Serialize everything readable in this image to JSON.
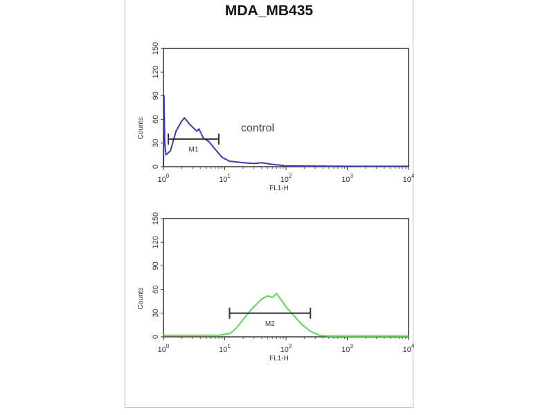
{
  "title": "MDA_MB435",
  "chart_data": [
    {
      "type": "line",
      "title": "MDA_MB435",
      "xlabel": "FL1-H",
      "ylabel": "Counts",
      "xscale": "log",
      "xlim": [
        1,
        10000
      ],
      "ylim": [
        0,
        150
      ],
      "xticks": [
        "10^0",
        "10^1",
        "10^2",
        "10^3",
        "10^4"
      ],
      "yticks": [
        0,
        30,
        60,
        90,
        120,
        150
      ],
      "grid": false,
      "annotation": "control",
      "marker": {
        "label": "M1",
        "range": [
          1.2,
          8
        ],
        "y": 35
      },
      "color": "#3a3ab8",
      "x": [
        1,
        1.02,
        1.05,
        1.1,
        1.3,
        1.6,
        2.0,
        2.2,
        2.6,
        3.0,
        3.5,
        3.8,
        4.5,
        5.5,
        7,
        9,
        12,
        20,
        30,
        40,
        60,
        80,
        100,
        1000,
        10000
      ],
      "y": [
        0,
        90,
        30,
        15,
        20,
        45,
        58,
        62,
        55,
        50,
        45,
        48,
        36,
        32,
        22,
        12,
        7,
        5,
        4,
        5,
        3,
        2,
        1,
        0.5,
        0.5
      ]
    },
    {
      "type": "line",
      "xlabel": "FL1-H",
      "ylabel": "Counts",
      "xscale": "log",
      "xlim": [
        1,
        10000
      ],
      "ylim": [
        0,
        150
      ],
      "xticks": [
        "10^0",
        "10^1",
        "10^2",
        "10^3",
        "10^4"
      ],
      "yticks": [
        0,
        30,
        60,
        90,
        120,
        150
      ],
      "grid": false,
      "marker": {
        "label": "M2",
        "range": [
          12,
          250
        ],
        "y": 30
      },
      "color": "#5ad85a",
      "x": [
        1,
        3,
        8,
        12,
        15,
        20,
        28,
        40,
        50,
        60,
        70,
        85,
        100,
        130,
        180,
        250,
        350,
        500,
        1000,
        10000
      ],
      "y": [
        2,
        2,
        2,
        4,
        10,
        22,
        36,
        48,
        52,
        50,
        55,
        46,
        38,
        28,
        16,
        7,
        2,
        1,
        1,
        1
      ]
    }
  ]
}
